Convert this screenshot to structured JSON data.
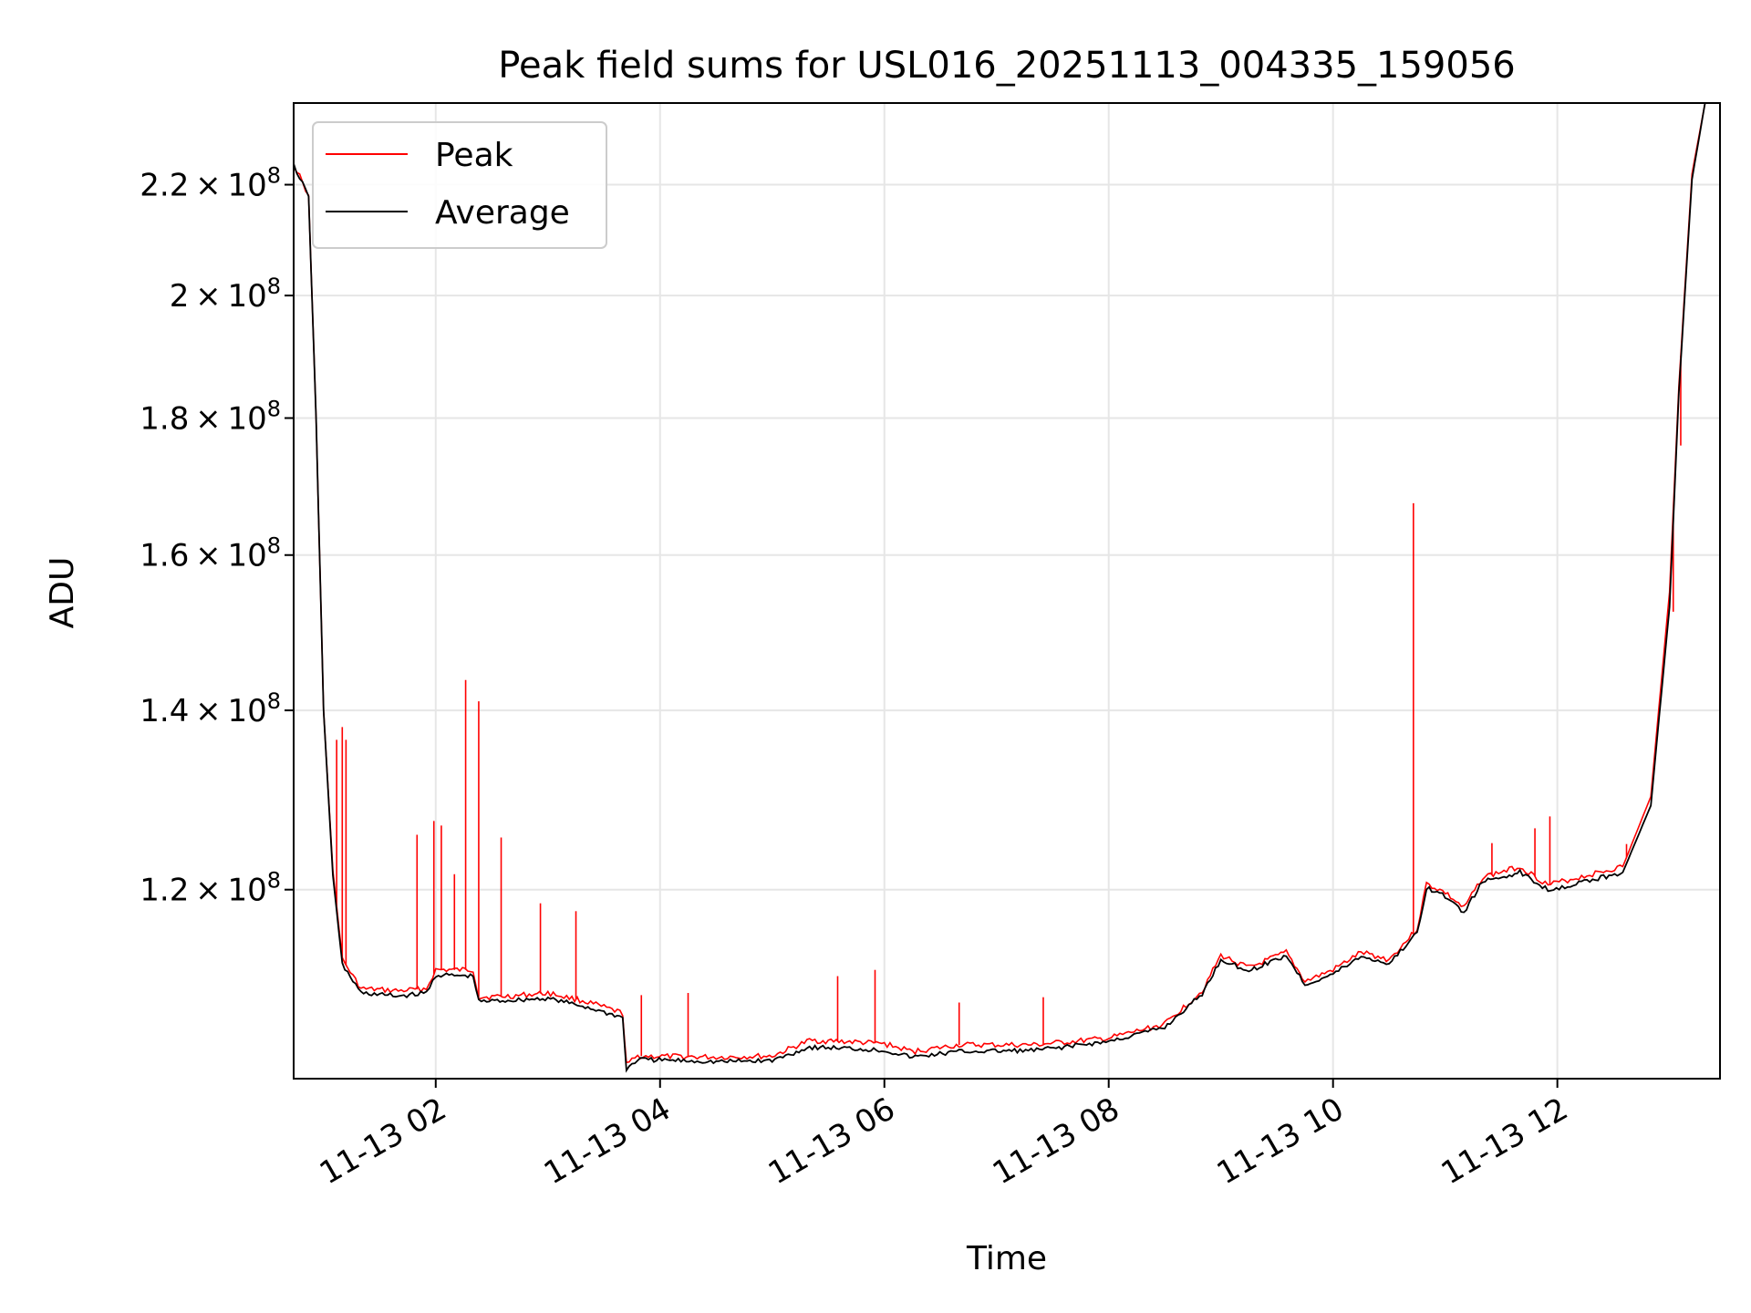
{
  "chart_data": {
    "type": "line",
    "title": "Peak field sums for USL016_20251113_004335_159056",
    "xlabel": "Time",
    "ylabel": "ADU",
    "y_scale": "log",
    "grid": true,
    "legend_position": "top-left",
    "xlim": [
      "2025-11-13 00:44",
      "2025-11-13 13:27"
    ],
    "ylim": [
      102000000,
      236000000
    ],
    "x_ticks": [
      {
        "value": "2025-11-13 02:00",
        "label": "11-13 02"
      },
      {
        "value": "2025-11-13 04:00",
        "label": "11-13 04"
      },
      {
        "value": "2025-11-13 06:00",
        "label": "11-13 06"
      },
      {
        "value": "2025-11-13 08:00",
        "label": "11-13 08"
      },
      {
        "value": "2025-11-13 10:00",
        "label": "11-13 10"
      },
      {
        "value": "2025-11-13 12:00",
        "label": "11-13 12"
      }
    ],
    "y_ticks": [
      {
        "value": 120000000,
        "mantissa": "1.2",
        "exponent": "8"
      },
      {
        "value": 140000000,
        "mantissa": "1.4",
        "exponent": "8"
      },
      {
        "value": 160000000,
        "mantissa": "1.6",
        "exponent": "8"
      },
      {
        "value": 180000000,
        "mantissa": "1.8",
        "exponent": "8"
      },
      {
        "value": 200000000,
        "mantissa": "2",
        "exponent": "8"
      },
      {
        "value": 220000000,
        "mantissa": "2.2",
        "exponent": "8"
      }
    ],
    "series": [
      {
        "name": "Peak",
        "color": "#ff0000",
        "points": [
          [
            "2025-11-13 00:44",
            224000000
          ],
          [
            "2025-11-13 00:52",
            218000000
          ],
          [
            "2025-11-13 00:56",
            180000000
          ],
          [
            "2025-11-13 01:00",
            140000000
          ],
          [
            "2025-11-13 01:05",
            122000000
          ],
          [
            "2025-11-13 01:10",
            113000000
          ],
          [
            "2025-11-13 01:20",
            110200000
          ],
          [
            "2025-11-13 01:40",
            110000000
          ],
          [
            "2025-11-13 01:55",
            110200000
          ],
          [
            "2025-11-13 02:00",
            112000000
          ],
          [
            "2025-11-13 02:20",
            112000000
          ],
          [
            "2025-11-13 02:23",
            109400000
          ],
          [
            "2025-11-13 02:40",
            109500000
          ],
          [
            "2025-11-13 03:00",
            109800000
          ],
          [
            "2025-11-13 03:20",
            109000000
          ],
          [
            "2025-11-13 03:40",
            107900000
          ],
          [
            "2025-11-13 03:42",
            103200000
          ],
          [
            "2025-11-13 03:48",
            104000000
          ],
          [
            "2025-11-13 04:30",
            103900000
          ],
          [
            "2025-11-13 05:00",
            104000000
          ],
          [
            "2025-11-13 05:20",
            105400000
          ],
          [
            "2025-11-13 05:40",
            105300000
          ],
          [
            "2025-11-13 06:00",
            105100000
          ],
          [
            "2025-11-13 06:15",
            104400000
          ],
          [
            "2025-11-13 06:40",
            105000000
          ],
          [
            "2025-11-13 07:20",
            105000000
          ],
          [
            "2025-11-13 08:00",
            105600000
          ],
          [
            "2025-11-13 08:30",
            106900000
          ],
          [
            "2025-11-13 08:50",
            110000000
          ],
          [
            "2025-11-13 09:00",
            113400000
          ],
          [
            "2025-11-13 09:15",
            112200000
          ],
          [
            "2025-11-13 09:35",
            113700000
          ],
          [
            "2025-11-13 09:45",
            110900000
          ],
          [
            "2025-11-13 10:00",
            112000000
          ],
          [
            "2025-11-13 10:15",
            113700000
          ],
          [
            "2025-11-13 10:30",
            113000000
          ],
          [
            "2025-11-13 10:45",
            116000000
          ],
          [
            "2025-11-13 10:50",
            120600000
          ],
          [
            "2025-11-13 11:00",
            119700000
          ],
          [
            "2025-11-13 11:10",
            118100000
          ],
          [
            "2025-11-13 11:20",
            121300000
          ],
          [
            "2025-11-13 11:40",
            122400000
          ],
          [
            "2025-11-13 11:55",
            120500000
          ],
          [
            "2025-11-13 12:10",
            121200000
          ],
          [
            "2025-11-13 12:35",
            122400000
          ],
          [
            "2025-11-13 12:50",
            130000000
          ],
          [
            "2025-11-13 13:00",
            155000000
          ],
          [
            "2025-11-13 13:05",
            185000000
          ],
          [
            "2025-11-13 13:12",
            222000000
          ],
          [
            "2025-11-13 13:19",
            236000000
          ]
        ],
        "spikes": [
          [
            "2025-11-13 01:07",
            136500000
          ],
          [
            "2025-11-13 01:10",
            138000000
          ],
          [
            "2025-11-13 01:12",
            136500000
          ],
          [
            "2025-11-13 01:50",
            125800000
          ],
          [
            "2025-11-13 01:59",
            127300000
          ],
          [
            "2025-11-13 02:03",
            126800000
          ],
          [
            "2025-11-13 02:10",
            121600000
          ],
          [
            "2025-11-13 02:16",
            143700000
          ],
          [
            "2025-11-13 02:23",
            141100000
          ],
          [
            "2025-11-13 02:35",
            125500000
          ],
          [
            "2025-11-13 02:56",
            118600000
          ],
          [
            "2025-11-13 03:15",
            117800000
          ],
          [
            "2025-11-13 03:50",
            109600000
          ],
          [
            "2025-11-13 04:15",
            109800000
          ],
          [
            "2025-11-13 05:35",
            111400000
          ],
          [
            "2025-11-13 05:55",
            112000000
          ],
          [
            "2025-11-13 06:40",
            108900000
          ],
          [
            "2025-11-13 07:25",
            109400000
          ],
          [
            "2025-11-13 10:43",
            167300000
          ],
          [
            "2025-11-13 11:25",
            124900000
          ],
          [
            "2025-11-13 11:48",
            126500000
          ],
          [
            "2025-11-13 11:56",
            127800000
          ],
          [
            "2025-11-13 12:37",
            124800000
          ],
          [
            "2025-11-13 13:02",
            152400000
          ],
          [
            "2025-11-13 13:06",
            175800000
          ]
        ]
      },
      {
        "name": "Average",
        "color": "#000000",
        "points": [
          [
            "2025-11-13 00:44",
            223700000
          ],
          [
            "2025-11-13 00:52",
            217800000
          ],
          [
            "2025-11-13 00:56",
            180000000
          ],
          [
            "2025-11-13 01:00",
            140000000
          ],
          [
            "2025-11-13 01:05",
            121500000
          ],
          [
            "2025-11-13 01:10",
            112500000
          ],
          [
            "2025-11-13 01:20",
            109800000
          ],
          [
            "2025-11-13 01:40",
            109500000
          ],
          [
            "2025-11-13 01:55",
            109800000
          ],
          [
            "2025-11-13 02:00",
            111500000
          ],
          [
            "2025-11-13 02:20",
            111400000
          ],
          [
            "2025-11-13 02:23",
            109000000
          ],
          [
            "2025-11-13 02:40",
            109100000
          ],
          [
            "2025-11-13 03:00",
            109300000
          ],
          [
            "2025-11-13 03:20",
            108500000
          ],
          [
            "2025-11-13 03:40",
            107500000
          ],
          [
            "2025-11-13 03:42",
            102800000
          ],
          [
            "2025-11-13 03:48",
            103700000
          ],
          [
            "2025-11-13 04:30",
            103500000
          ],
          [
            "2025-11-13 05:00",
            103600000
          ],
          [
            "2025-11-13 05:20",
            104800000
          ],
          [
            "2025-11-13 05:40",
            104700000
          ],
          [
            "2025-11-13 06:00",
            104500000
          ],
          [
            "2025-11-13 06:15",
            103900000
          ],
          [
            "2025-11-13 06:40",
            104400000
          ],
          [
            "2025-11-13 07:20",
            104500000
          ],
          [
            "2025-11-13 08:00",
            105300000
          ],
          [
            "2025-11-13 08:30",
            106600000
          ],
          [
            "2025-11-13 08:50",
            109700000
          ],
          [
            "2025-11-13 09:00",
            113000000
          ],
          [
            "2025-11-13 09:15",
            111900000
          ],
          [
            "2025-11-13 09:35",
            113400000
          ],
          [
            "2025-11-13 09:45",
            110600000
          ],
          [
            "2025-11-13 10:00",
            111600000
          ],
          [
            "2025-11-13 10:15",
            113300000
          ],
          [
            "2025-11-13 10:30",
            112600000
          ],
          [
            "2025-11-13 10:45",
            115600000
          ],
          [
            "2025-11-13 10:50",
            120200000
          ],
          [
            "2025-11-13 11:00",
            119300000
          ],
          [
            "2025-11-13 11:10",
            117700000
          ],
          [
            "2025-11-13 11:20",
            120800000
          ],
          [
            "2025-11-13 11:40",
            121800000
          ],
          [
            "2025-11-13 11:55",
            120000000
          ],
          [
            "2025-11-13 12:10",
            120600000
          ],
          [
            "2025-11-13 12:35",
            121800000
          ],
          [
            "2025-11-13 12:50",
            129000000
          ],
          [
            "2025-11-13 13:00",
            153000000
          ],
          [
            "2025-11-13 13:05",
            184000000
          ],
          [
            "2025-11-13 13:12",
            221000000
          ],
          [
            "2025-11-13 13:19",
            236000000
          ]
        ]
      }
    ]
  }
}
